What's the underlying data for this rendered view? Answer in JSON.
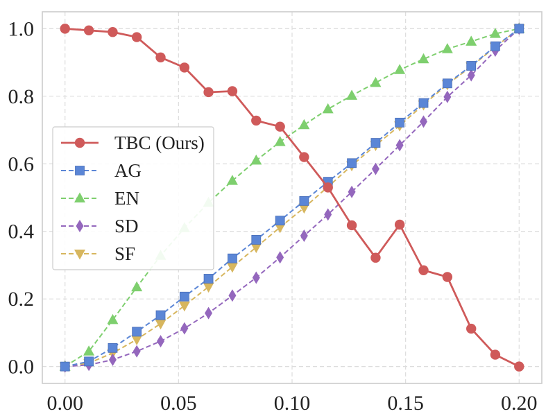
{
  "chart_data": {
    "type": "line",
    "title": "",
    "xlabel": "",
    "ylabel": "",
    "xlim": [
      -0.01,
      0.21
    ],
    "ylim": [
      -0.05,
      1.05
    ],
    "x_ticks": [
      0.0,
      0.05,
      0.1,
      0.15,
      0.2
    ],
    "x_tick_labels": [
      "0.00",
      "0.05",
      "0.10",
      "0.15",
      "0.20"
    ],
    "y_ticks": [
      0.0,
      0.2,
      0.4,
      0.6,
      0.8,
      1.0
    ],
    "y_tick_labels": [
      "0.0",
      "0.2",
      "0.4",
      "0.6",
      "0.8",
      "1.0"
    ],
    "grid": true,
    "legend_position": "center-left",
    "x": [
      0.0,
      0.0105,
      0.021,
      0.0316,
      0.0421,
      0.0526,
      0.0632,
      0.0737,
      0.0842,
      0.0947,
      0.1053,
      0.1158,
      0.1263,
      0.1368,
      0.1474,
      0.1579,
      0.1684,
      0.1789,
      0.1895,
      0.2
    ],
    "series": [
      {
        "name": "TBC (Ours)",
        "color": "#cf5a5a",
        "marker": "circle",
        "dashed": false,
        "values": [
          1.0,
          0.995,
          0.99,
          0.975,
          0.915,
          0.885,
          0.812,
          0.815,
          0.728,
          0.71,
          0.62,
          0.53,
          0.418,
          0.322,
          0.42,
          0.285,
          0.265,
          0.112,
          0.035,
          0.0
        ]
      },
      {
        "name": "AG",
        "color": "#5b86d6",
        "marker": "square",
        "dashed": true,
        "values": [
          0.0,
          0.015,
          0.055,
          0.103,
          0.152,
          0.207,
          0.26,
          0.32,
          0.375,
          0.432,
          0.49,
          0.547,
          0.602,
          0.662,
          0.722,
          0.78,
          0.838,
          0.89,
          0.948,
          1.0
        ]
      },
      {
        "name": "EN",
        "color": "#7ecf6e",
        "marker": "triangle-up",
        "dashed": true,
        "values": [
          0.0,
          0.045,
          0.138,
          0.235,
          0.328,
          0.41,
          0.485,
          0.55,
          0.61,
          0.665,
          0.715,
          0.762,
          0.802,
          0.84,
          0.878,
          0.91,
          0.94,
          0.962,
          0.985,
          1.0
        ]
      },
      {
        "name": "SD",
        "color": "#9467bd",
        "marker": "diamond",
        "dashed": true,
        "values": [
          0.0,
          0.005,
          0.02,
          0.045,
          0.075,
          0.113,
          0.158,
          0.21,
          0.263,
          0.323,
          0.387,
          0.45,
          0.517,
          0.585,
          0.655,
          0.725,
          0.798,
          0.862,
          0.935,
          1.0
        ]
      },
      {
        "name": "SF",
        "color": "#d7b65e",
        "marker": "triangle-down",
        "dashed": true,
        "values": [
          0.0,
          0.01,
          0.04,
          0.08,
          0.127,
          0.18,
          0.236,
          0.295,
          0.353,
          0.412,
          0.47,
          0.532,
          0.595,
          0.655,
          0.713,
          0.775,
          0.835,
          0.888,
          0.946,
          1.0
        ]
      }
    ]
  },
  "colors": {
    "axes_edge": "#cccccc",
    "grid": "#dddddd",
    "background": "#ffffff"
  }
}
